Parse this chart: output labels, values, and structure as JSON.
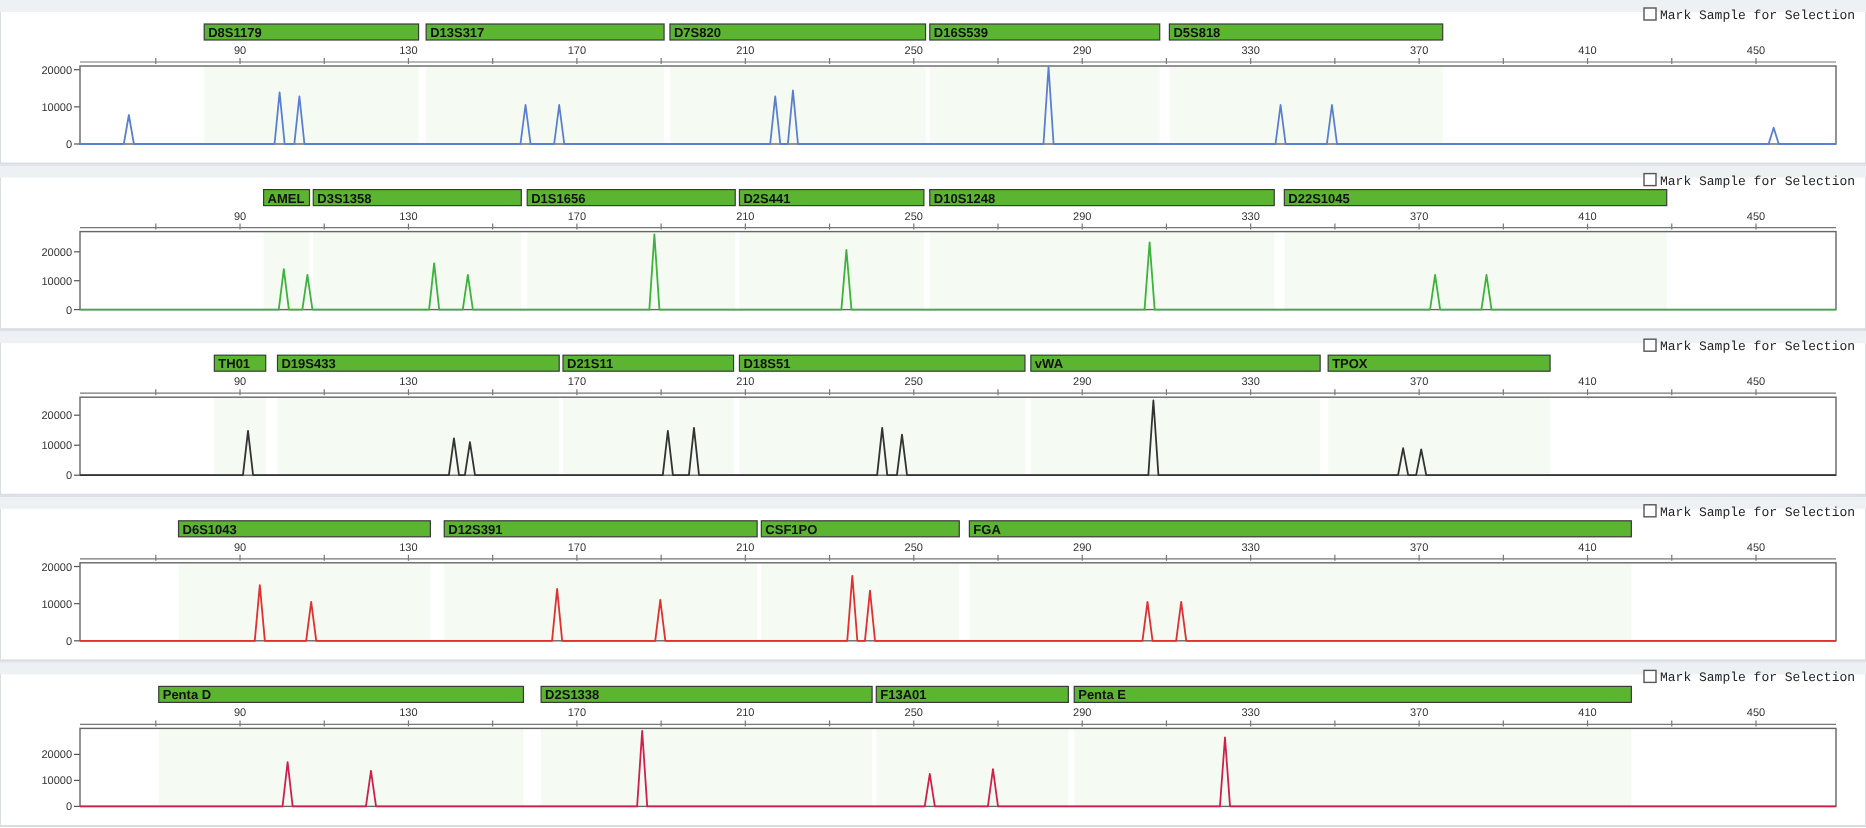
{
  "chart_data": [
    {
      "type": "line",
      "xlim": [
        52,
        469
      ],
      "xticks": [
        {
          "value": 70,
          "label": null
        },
        90,
        {
          "value": 110,
          "label": null
        },
        130,
        {
          "value": 150,
          "label": null
        },
        170,
        {
          "value": 190,
          "label": null
        },
        210,
        {
          "value": 230,
          "label": null
        },
        250,
        {
          "value": 270,
          "label": null
        },
        290,
        {
          "value": 310,
          "label": null
        },
        330,
        {
          "value": 350,
          "label": null
        },
        370,
        {
          "value": 390,
          "label": null
        },
        410,
        {
          "value": 430,
          "label": null
        },
        450
      ],
      "ylim": [
        0,
        21000
      ],
      "yticks": [
        0,
        10000,
        20000
      ],
      "annotations": [
        "Mark Sample for Selection"
      ],
      "bands": [
        {
          "axis": "x",
          "from": 81.5,
          "to": 132.4,
          "label": "D8S1179",
          "color": "#5cb531"
        },
        {
          "axis": "x",
          "from": 134.2,
          "to": 190.7,
          "label": "D13S317",
          "color": "#5cb531"
        },
        {
          "axis": "x",
          "from": 192.1,
          "to": 252.8,
          "label": "D7S820",
          "color": "#5cb531"
        },
        {
          "axis": "x",
          "from": 253.8,
          "to": 308.4,
          "label": "D16S539",
          "color": "#5cb531"
        },
        {
          "axis": "x",
          "from": 310.7,
          "to": 375.6,
          "label": "D5S818",
          "color": "#5cb531"
        }
      ],
      "series": [
        {
          "color": "#5b7fd0",
          "x": [
            52,
            62.4,
            63.6,
            64.8,
            98.2,
            99.4,
            100.6,
            102.9,
            104.1,
            105.3,
            156.6,
            157.8,
            159,
            164.6,
            165.8,
            167,
            215.9,
            217.1,
            218.3,
            220.1,
            221.3,
            222.5,
            280.8,
            282,
            283.2,
            335.9,
            337.1,
            338.3,
            348.1,
            349.3,
            350.5,
            453,
            454.2,
            455.4,
            469
          ],
          "values": [
            0,
            0,
            7800,
            0,
            0,
            13900,
            0,
            0,
            12800,
            0,
            0,
            10500,
            0,
            0,
            10500,
            0,
            0,
            12800,
            0,
            0,
            14400,
            0,
            0,
            20800,
            0,
            0,
            10500,
            0,
            0,
            10500,
            0,
            0,
            4400,
            0,
            0
          ]
        }
      ]
    },
    {
      "type": "line",
      "xlim": [
        52,
        469
      ],
      "xticks": [
        {
          "value": 70,
          "label": null
        },
        90,
        {
          "value": 110,
          "label": null
        },
        130,
        {
          "value": 150,
          "label": null
        },
        170,
        {
          "value": 190,
          "label": null
        },
        210,
        {
          "value": 230,
          "label": null
        },
        250,
        {
          "value": 270,
          "label": null
        },
        290,
        {
          "value": 310,
          "label": null
        },
        330,
        {
          "value": 350,
          "label": null
        },
        370,
        {
          "value": 390,
          "label": null
        },
        410,
        {
          "value": 430,
          "label": null
        },
        450
      ],
      "ylim": [
        0,
        27000
      ],
      "yticks": [
        0,
        10000,
        20000
      ],
      "annotations": [
        "Mark Sample for Selection"
      ],
      "bands": [
        {
          "axis": "x",
          "from": 95.6,
          "to": 106.5,
          "label": "AMEL",
          "color": "#5cb531"
        },
        {
          "axis": "x",
          "from": 107.4,
          "to": 156.8,
          "label": "D3S1358",
          "color": "#5cb531"
        },
        {
          "axis": "x",
          "from": 158.2,
          "to": 207.6,
          "label": "D1S1656",
          "color": "#5cb531"
        },
        {
          "axis": "x",
          "from": 208.6,
          "to": 252.4,
          "label": "D2S441",
          "color": "#5cb531"
        },
        {
          "axis": "x",
          "from": 253.8,
          "to": 335.6,
          "label": "D10S1248",
          "color": "#5cb531"
        },
        {
          "axis": "x",
          "from": 338,
          "to": 428.8,
          "label": "D22S1045",
          "color": "#5cb531"
        }
      ],
      "series": [
        {
          "color": "#3cb43c",
          "x": [
            52,
            99.2,
            100.4,
            101.6,
            104.8,
            106,
            107.2,
            134.9,
            136.1,
            137.3,
            142.9,
            144.1,
            145.3,
            187.2,
            188.4,
            189.6,
            232.8,
            234,
            235.2,
            304.8,
            306,
            307.2,
            372.6,
            373.8,
            375,
            384.8,
            386,
            387.2,
            469
          ],
          "values": [
            0,
            0,
            14000,
            0,
            0,
            12000,
            0,
            0,
            16000,
            0,
            0,
            12000,
            0,
            0,
            26000,
            0,
            0,
            20700,
            0,
            0,
            23300,
            0,
            0,
            12000,
            0,
            0,
            12000,
            0,
            0
          ]
        }
      ]
    },
    {
      "type": "line",
      "xlim": [
        52,
        469
      ],
      "xticks": [
        {
          "value": 70,
          "label": null
        },
        90,
        {
          "value": 110,
          "label": null
        },
        130,
        {
          "value": 150,
          "label": null
        },
        170,
        {
          "value": 190,
          "label": null
        },
        210,
        {
          "value": 230,
          "label": null
        },
        250,
        {
          "value": 270,
          "label": null
        },
        290,
        {
          "value": 310,
          "label": null
        },
        330,
        {
          "value": 350,
          "label": null
        },
        370,
        {
          "value": 390,
          "label": null
        },
        410,
        {
          "value": 430,
          "label": null
        },
        450
      ],
      "ylim": [
        0,
        26000
      ],
      "yticks": [
        0,
        10000,
        20000
      ],
      "annotations": [
        "Mark Sample for Selection"
      ],
      "bands": [
        {
          "axis": "x",
          "from": 83.9,
          "to": 96.1,
          "label": "TH01",
          "color": "#5cb531"
        },
        {
          "axis": "x",
          "from": 98.9,
          "to": 165.8,
          "label": "D19S433",
          "color": "#5cb531"
        },
        {
          "axis": "x",
          "from": 166.7,
          "to": 207.2,
          "label": "D21S11",
          "color": "#5cb531"
        },
        {
          "axis": "x",
          "from": 208.6,
          "to": 276.4,
          "label": "D18S51",
          "color": "#5cb531"
        },
        {
          "axis": "x",
          "from": 277.8,
          "to": 346.5,
          "label": "vWA",
          "color": "#5cb531"
        },
        {
          "axis": "x",
          "from": 348.4,
          "to": 401.1,
          "label": "TPOX",
          "color": "#5cb531"
        }
      ],
      "series": [
        {
          "color": "#333333",
          "x": [
            52,
            90.7,
            91.9,
            93.1,
            139.6,
            140.8,
            142,
            143.4,
            144.6,
            145.8,
            190.4,
            191.6,
            192.8,
            196.6,
            197.8,
            199,
            241.3,
            242.5,
            243.7,
            246,
            247.2,
            248.4,
            305.7,
            306.9,
            308.1,
            365,
            366.2,
            367.4,
            369.3,
            370.5,
            371.7,
            469
          ],
          "values": [
            0,
            0,
            14800,
            0,
            0,
            12300,
            0,
            0,
            11000,
            0,
            0,
            14800,
            0,
            0,
            15800,
            0,
            0,
            15800,
            0,
            0,
            13500,
            0,
            0,
            24900,
            0,
            0,
            9000,
            0,
            0,
            8600,
            0,
            0
          ]
        }
      ]
    },
    {
      "type": "line",
      "xlim": [
        52,
        469
      ],
      "xticks": [
        {
          "value": 70,
          "label": null
        },
        90,
        {
          "value": 110,
          "label": null
        },
        130,
        {
          "value": 150,
          "label": null
        },
        170,
        {
          "value": 190,
          "label": null
        },
        210,
        {
          "value": 230,
          "label": null
        },
        250,
        {
          "value": 270,
          "label": null
        },
        290,
        {
          "value": 310,
          "label": null
        },
        330,
        {
          "value": 350,
          "label": null
        },
        370,
        {
          "value": 390,
          "label": null
        },
        410,
        {
          "value": 430,
          "label": null
        },
        450
      ],
      "ylim": [
        0,
        21000
      ],
      "yticks": [
        0,
        10000,
        20000
      ],
      "annotations": [
        "Mark Sample for Selection"
      ],
      "bands": [
        {
          "axis": "x",
          "from": 75.4,
          "to": 135.2,
          "label": "D6S1043",
          "color": "#5cb531"
        },
        {
          "axis": "x",
          "from": 138.5,
          "to": 212.8,
          "label": "D12S391",
          "color": "#5cb531"
        },
        {
          "axis": "x",
          "from": 213.8,
          "to": 260.8,
          "label": "CSF1PO",
          "color": "#5cb531"
        },
        {
          "axis": "x",
          "from": 263.2,
          "to": 420.4,
          "label": "FGA",
          "color": "#5cb531"
        }
      ],
      "series": [
        {
          "color": "#e03030",
          "x": [
            52,
            93.5,
            94.7,
            95.9,
            105.7,
            106.9,
            108.1,
            164.1,
            165.3,
            166.5,
            188.6,
            189.8,
            191,
            234.2,
            235.4,
            236.6,
            238.4,
            239.6,
            240.8,
            304.3,
            305.5,
            306.7,
            312.3,
            313.5,
            314.7,
            469
          ],
          "values": [
            0,
            0,
            15000,
            0,
            0,
            10500,
            0,
            0,
            14000,
            0,
            0,
            11000,
            0,
            0,
            17500,
            0,
            0,
            13500,
            0,
            0,
            10500,
            0,
            0,
            10500,
            0,
            0
          ]
        }
      ]
    },
    {
      "type": "line",
      "xlim": [
        52,
        469
      ],
      "xticks": [
        {
          "value": 70,
          "label": null
        },
        90,
        {
          "value": 110,
          "label": null
        },
        130,
        {
          "value": 150,
          "label": null
        },
        170,
        {
          "value": 190,
          "label": null
        },
        210,
        {
          "value": 230,
          "label": null
        },
        250,
        {
          "value": 270,
          "label": null
        },
        290,
        {
          "value": 310,
          "label": null
        },
        330,
        {
          "value": 350,
          "label": null
        },
        370,
        {
          "value": 390,
          "label": null
        },
        410,
        {
          "value": 430,
          "label": null
        },
        450
      ],
      "ylim": [
        0,
        30000
      ],
      "yticks": [
        0,
        10000,
        20000
      ],
      "annotations": [
        "Mark Sample for Selection"
      ],
      "bands": [
        {
          "axis": "x",
          "from": 70.7,
          "to": 157.3,
          "label": "Penta D",
          "color": "#5cb531"
        },
        {
          "axis": "x",
          "from": 161.5,
          "to": 240.1,
          "label": "D2S1338",
          "color": "#5cb531"
        },
        {
          "axis": "x",
          "from": 241.1,
          "to": 286.7,
          "label": "F13A01",
          "color": "#5cb531"
        },
        {
          "axis": "x",
          "from": 288.1,
          "to": 420.4,
          "label": "Penta E",
          "color": "#5cb531"
        }
      ],
      "series": [
        {
          "color": "#d0204a",
          "x": [
            52,
            100.1,
            101.3,
            102.5,
            119.9,
            121.1,
            122.3,
            184.3,
            185.5,
            186.7,
            252.6,
            253.8,
            255,
            267.6,
            268.8,
            270,
            322.7,
            323.9,
            325.1,
            469
          ],
          "values": [
            0,
            0,
            17000,
            0,
            0,
            13700,
            0,
            0,
            29000,
            0,
            0,
            12500,
            0,
            0,
            14300,
            0,
            0,
            26500,
            0,
            0
          ]
        }
      ]
    }
  ]
}
